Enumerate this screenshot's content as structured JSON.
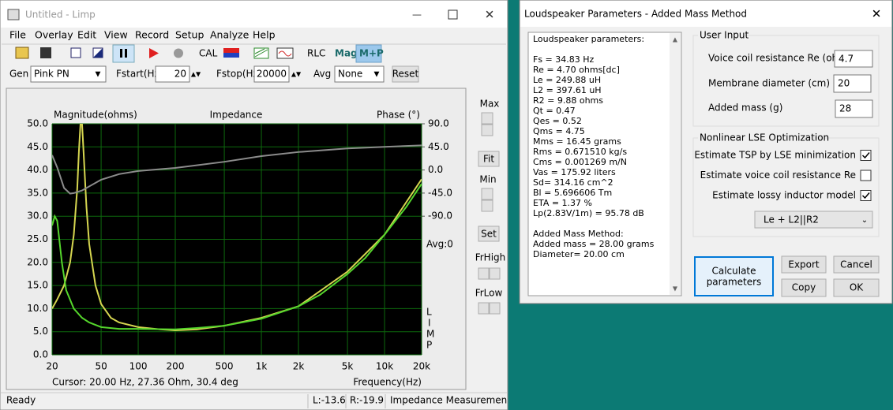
{
  "limp_window": {
    "title": "Untitled - Limp",
    "menu": [
      "File",
      "Overlay",
      "Edit",
      "View",
      "Record",
      "Setup",
      "Analyze",
      "Help"
    ],
    "toolbar": [
      "CAL",
      "RLC",
      "Mag",
      "M+P"
    ],
    "gen_row": {
      "gen_label": "Gen",
      "gen_value": "Pink PN",
      "fstart_label": "Fstart(Hz)",
      "fstart_value": "20",
      "fstop_label": "Fstop(Hz)",
      "fstop_value": "20000",
      "avg_label": "Avg",
      "avg_value": "None",
      "reset": "Reset"
    },
    "side_panel": {
      "max": "Max",
      "fit": "Fit",
      "min": "Min",
      "set": "Set",
      "frhigh": "FrHigh",
      "frlow": "FrLow"
    },
    "cursor": "Cursor: 20.00 Hz, 27.36 Ohm, 30.4 deg",
    "status": [
      "Ready",
      "L:-13.6",
      "R:-19.9",
      "Impedance Measuremen"
    ]
  },
  "chart_data": {
    "type": "line",
    "title": "Impedance",
    "y_label": "Magnitude(ohms)",
    "y2_label": "Phase (°)",
    "x_label": "Frequency(Hz)",
    "avg_label": "Avg:0",
    "watermark": [
      "L",
      "I",
      "M",
      "P"
    ],
    "log_x": true,
    "grid": true,
    "xlim": [
      20,
      20000
    ],
    "xticks": [
      20,
      50,
      100,
      200,
      500,
      {
        "value": 1000,
        "label": "1k"
      },
      {
        "value": 2000,
        "label": "2k"
      },
      {
        "value": 5000,
        "label": "5k"
      },
      {
        "value": 10000,
        "label": "10k"
      },
      {
        "value": 20000,
        "label": "20k"
      }
    ],
    "ylim": [
      0,
      50
    ],
    "yticks": [
      {
        "value": 0,
        "label": "0.0"
      },
      {
        "value": 5,
        "label": "5.0"
      },
      {
        "value": 10,
        "label": "10.0"
      },
      {
        "value": 15,
        "label": "15.0"
      },
      {
        "value": 20,
        "label": "20.0"
      },
      {
        "value": 25,
        "label": "25.0"
      },
      {
        "value": 30,
        "label": "30.0"
      },
      {
        "value": 35,
        "label": "35.0"
      },
      {
        "value": 40,
        "label": "40.0"
      },
      {
        "value": 45,
        "label": "45.0"
      },
      {
        "value": 50,
        "label": "50.0"
      }
    ],
    "y2lim": [
      -360,
      90
    ],
    "y2ticks": [
      {
        "value": 90,
        "label": "90.0"
      },
      {
        "value": 45,
        "label": "45.0"
      },
      {
        "value": 0,
        "label": "0.0"
      },
      {
        "value": -45,
        "label": "-45.0"
      },
      {
        "value": -90,
        "label": "-90.0"
      }
    ],
    "series": [
      {
        "color": "#d6d650",
        "axis": "y",
        "x": [
          20,
          22,
          25,
          28,
          30,
          32,
          33,
          34,
          35,
          36,
          38,
          40,
          45,
          50,
          60,
          70,
          100,
          150,
          200,
          300,
          500,
          1000,
          2000,
          5000,
          10000,
          20000
        ],
        "values": [
          10,
          12,
          15,
          20,
          26,
          36,
          44,
          50,
          50,
          44,
          32,
          24,
          15,
          11,
          8,
          7,
          6,
          5.5,
          5.3,
          5.5,
          6.3,
          8,
          10.5,
          18,
          26,
          38
        ]
      },
      {
        "color": "#55d62c",
        "axis": "y",
        "x": [
          20,
          21,
          22,
          24,
          26,
          30,
          35,
          40,
          50,
          70,
          100,
          200,
          300,
          500,
          1000,
          2000,
          3000,
          5000,
          7000,
          10000,
          15000,
          20000
        ],
        "values": [
          28,
          30,
          29,
          20,
          14,
          10,
          8,
          7,
          6,
          5.6,
          5.6,
          5.5,
          5.8,
          6.3,
          7.8,
          10.5,
          13,
          17.5,
          21,
          26,
          32,
          37
        ]
      },
      {
        "color": "#8c8c8c",
        "axis": "y2",
        "x": [
          20,
          22,
          25,
          28,
          30,
          35,
          40,
          50,
          70,
          100,
          200,
          500,
          1000,
          2000,
          5000,
          10000,
          20000
        ],
        "values": [
          29,
          5,
          -35,
          -46,
          -45,
          -40,
          -32,
          -19,
          -8,
          -2,
          4,
          16,
          27,
          35,
          42,
          45,
          48
        ]
      }
    ]
  },
  "dialog": {
    "title": "Loudspeaker Parameters - Added Mass Method",
    "report_heading": "Loudspeaker parameters:",
    "report_params": [
      "Fs  = 34.83 Hz",
      "Re  = 4.70 ohms[dc]",
      "Le  = 249.88 uH",
      "L2  = 397.61 uH",
      "R2  = 9.88 ohms",
      "Qt  = 0.47",
      "Qes = 0.52",
      "Qms = 4.75",
      "Mms = 16.45 grams",
      "Rms = 0.671510 kg/s",
      "Cms = 0.001269 m/N",
      "Vas = 175.92 liters",
      "Sd= 314.16 cm^2",
      "Bl  = 5.696606 Tm",
      "ETA = 1.37 %",
      "Lp(2.83V/1m) = 95.78 dB"
    ],
    "report_method": [
      "Added Mass Method:",
      "Added mass = 28.00 grams",
      "Diameter= 20.00 cm"
    ],
    "user_input": {
      "title": "User Input",
      "re_label": "Voice coil resistance Re (ohms)",
      "re_value": "4.7",
      "diameter_label": "Membrane diameter (cm)",
      "diameter_value": "20",
      "mass_label": "Added mass (g)",
      "mass_value": "28"
    },
    "nonlinear": {
      "title": "Nonlinear LSE Optimization",
      "options": [
        {
          "label": "Estimate TSP by LSE minimization",
          "checked": true
        },
        {
          "label": "Estimate voice coil resistance Re",
          "checked": false
        },
        {
          "label": "Estimate lossy inductor model",
          "checked": true
        }
      ],
      "model": "Le + L2||R2"
    },
    "buttons": {
      "calculate": [
        "Calculate",
        "parameters"
      ],
      "export": "Export",
      "cancel": "Cancel",
      "copy": "Copy",
      "ok": "OK"
    }
  }
}
